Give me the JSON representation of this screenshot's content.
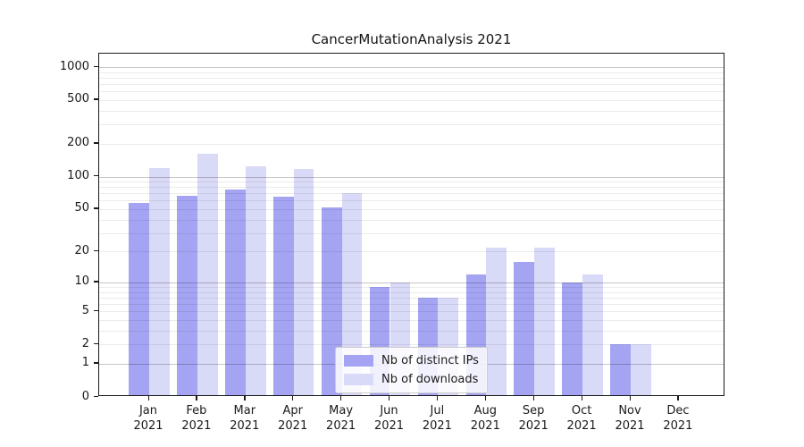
{
  "title": "CancerMutationAnalysis 2021",
  "chart_data": {
    "type": "bar",
    "title": "CancerMutationAnalysis 2021",
    "categories": [
      "Jan",
      "Feb",
      "Mar",
      "Apr",
      "May",
      "Jun",
      "Jul",
      "Aug",
      "Sep",
      "Oct",
      "Nov",
      "Dec"
    ],
    "year": "2021",
    "series": [
      {
        "name": "Nb of distinct IPs",
        "color": "#a4a4f3",
        "values": [
          57,
          66,
          76,
          65,
          52,
          9,
          7,
          12,
          16,
          10,
          2,
          0
        ]
      },
      {
        "name": "Nb of downloads",
        "color": "#d9d9f8",
        "values": [
          120,
          162,
          124,
          118,
          70,
          10,
          7,
          22,
          22,
          12,
          2,
          0
        ]
      }
    ],
    "xlabel": "",
    "ylabel": "",
    "yscale": "log1p",
    "yticks": [
      0,
      1,
      2,
      5,
      10,
      20,
      50,
      100,
      200,
      500,
      1000
    ],
    "ylim": [
      0,
      1320
    ],
    "grid": "horizontal, log minor lines on",
    "legend_position": "lower center inside plot",
    "colors": {
      "axis": "#1a1a1a",
      "grid_major": "#c9c9c9",
      "grid_minor": "#ebebeb",
      "background": "#ffffff"
    }
  }
}
